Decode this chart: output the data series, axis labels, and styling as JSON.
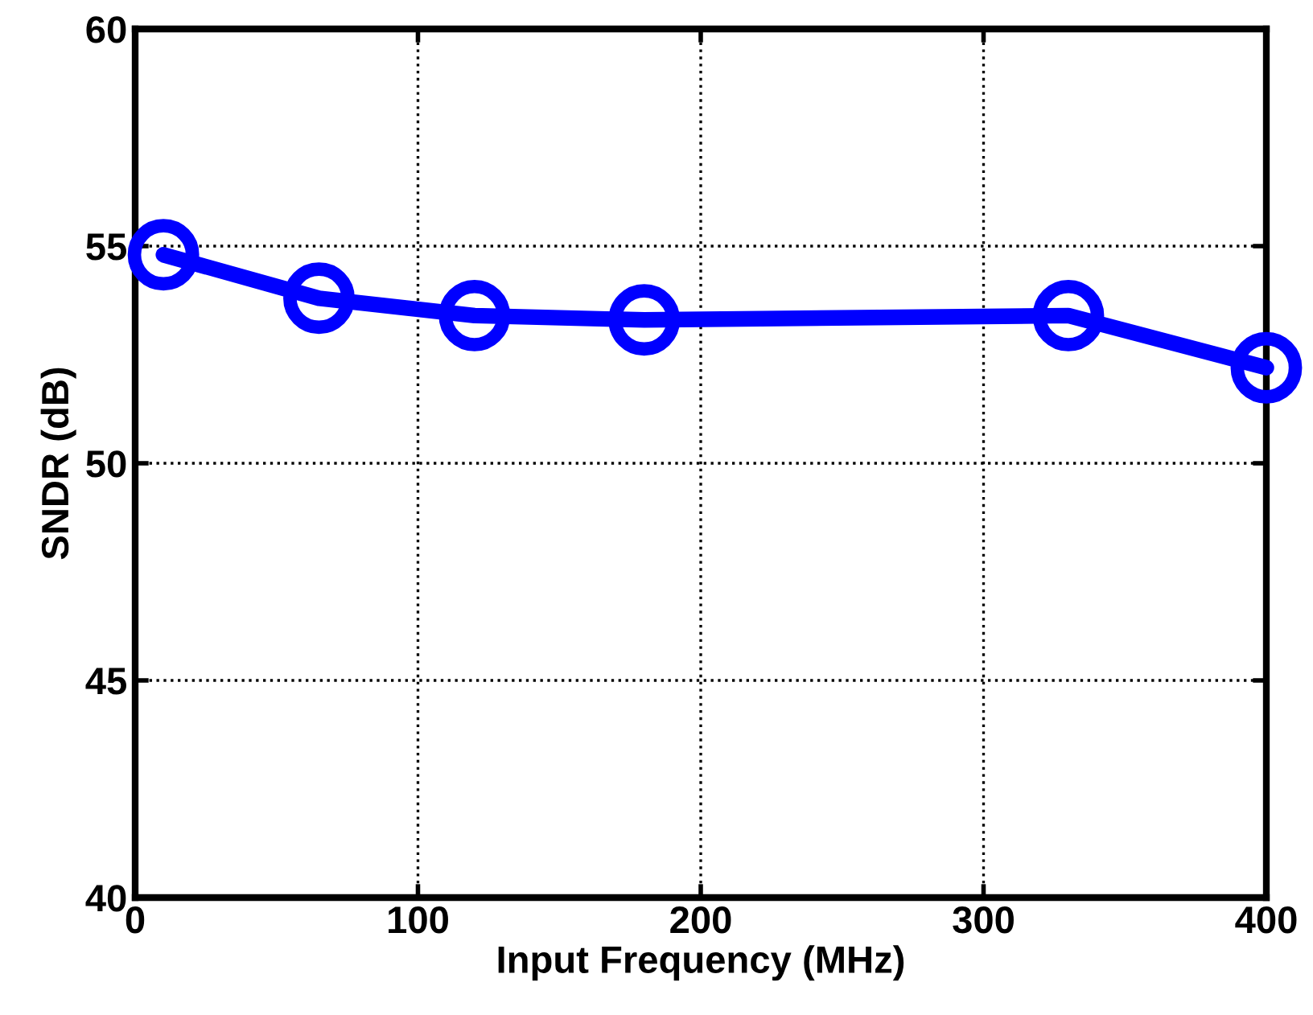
{
  "chart_data": {
    "type": "line",
    "xlabel": "Input Frequency (MHz)",
    "ylabel": "SNDR (dB)",
    "x": [
      10,
      65,
      120,
      180,
      330,
      400
    ],
    "series": [
      {
        "color": "#0000ff",
        "values": [
          54.8,
          53.8,
          53.4,
          53.3,
          53.4,
          52.2
        ]
      }
    ],
    "xlim": [
      0,
      400
    ],
    "ylim": [
      40,
      60
    ],
    "xticks": [
      0,
      100,
      200,
      300,
      400
    ],
    "yticks": [
      40,
      45,
      50,
      55,
      60
    ],
    "grid": true,
    "marker": "circle",
    "line_style": "solid"
  }
}
